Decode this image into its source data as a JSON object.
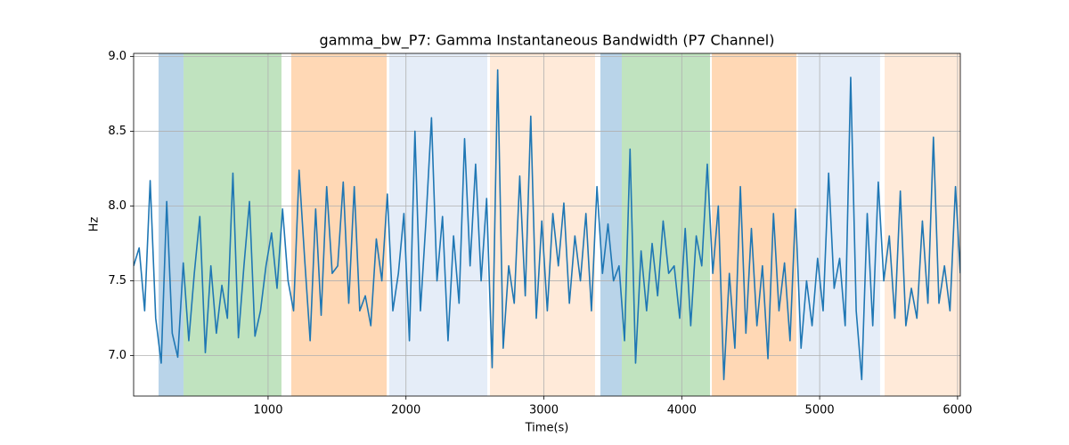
{
  "chart_data": {
    "type": "line",
    "title": "gamma_bw_P7: Gamma Instantaneous Bandwidth (P7 Channel)",
    "x_label": "Time(s)",
    "y_label": "Hz",
    "xlim": [
      25,
      6020
    ],
    "ylim": [
      6.73,
      9.02
    ],
    "xticks": [
      1000,
      2000,
      3000,
      4000,
      5000,
      6000
    ],
    "yticks": [
      {
        "value": 7,
        "label": "7.0"
      },
      7.5,
      {
        "value": 8,
        "label": "8.0"
      },
      8.5,
      {
        "value": 9,
        "label": "9.0"
      }
    ],
    "grid": true,
    "spans": [
      {
        "start": 206,
        "end": 387,
        "color": "#b9d4e9"
      },
      {
        "start": 387,
        "end": 1097,
        "color": "#c0e3bf"
      },
      {
        "start": 1168,
        "end": 1860,
        "color": "#ffd8b5"
      },
      {
        "start": 1879,
        "end": 2590,
        "color": "#e5edf8"
      },
      {
        "start": 2609,
        "end": 3371,
        "color": "#ffead9"
      },
      {
        "start": 3410,
        "end": 3565,
        "color": "#b9d4e9"
      },
      {
        "start": 3565,
        "end": 4205,
        "color": "#c0e3bf"
      },
      {
        "start": 4218,
        "end": 4831,
        "color": "#ffd8b5"
      },
      {
        "start": 4844,
        "end": 5438,
        "color": "#e5edf8"
      },
      {
        "start": 5471,
        "end": 6020,
        "color": "#ffead9"
      }
    ],
    "x": [
      25,
      65,
      105,
      145,
      185,
      225,
      265,
      305,
      345,
      385,
      425,
      465,
      505,
      545,
      585,
      625,
      665,
      705,
      745,
      785,
      825,
      865,
      905,
      945,
      985,
      1025,
      1065,
      1105,
      1145,
      1185,
      1225,
      1265,
      1305,
      1345,
      1385,
      1425,
      1465,
      1505,
      1545,
      1585,
      1625,
      1665,
      1705,
      1745,
      1785,
      1825,
      1865,
      1905,
      1945,
      1985,
      2025,
      2065,
      2105,
      2145,
      2185,
      2225,
      2265,
      2305,
      2345,
      2385,
      2425,
      2465,
      2505,
      2545,
      2585,
      2625,
      2665,
      2705,
      2745,
      2785,
      2825,
      2865,
      2905,
      2945,
      2985,
      3025,
      3065,
      3105,
      3145,
      3185,
      3225,
      3265,
      3305,
      3345,
      3385,
      3425,
      3465,
      3505,
      3545,
      3585,
      3625,
      3665,
      3705,
      3745,
      3785,
      3825,
      3865,
      3905,
      3945,
      3985,
      4025,
      4065,
      4105,
      4145,
      4185,
      4225,
      4265,
      4305,
      4345,
      4385,
      4425,
      4465,
      4505,
      4545,
      4585,
      4625,
      4665,
      4705,
      4745,
      4785,
      4825,
      4865,
      4905,
      4945,
      4985,
      5025,
      5065,
      5105,
      5145,
      5185,
      5225,
      5265,
      5305,
      5345,
      5385,
      5425,
      5465,
      5505,
      5545,
      5585,
      5625,
      5665,
      5705,
      5745,
      5785,
      5825,
      5865,
      5905,
      5945,
      5985,
      6020
    ],
    "series": [
      {
        "color": "#1f77b4",
        "values": [
          7.6,
          7.72,
          7.3,
          8.17,
          7.25,
          6.95,
          8.03,
          7.15,
          6.99,
          7.62,
          7.1,
          7.55,
          7.93,
          7.02,
          7.6,
          7.15,
          7.47,
          7.25,
          8.22,
          7.12,
          7.6,
          8.03,
          7.13,
          7.3,
          7.6,
          7.82,
          7.45,
          7.98,
          7.5,
          7.3,
          8.24,
          7.65,
          7.1,
          7.98,
          7.27,
          8.13,
          7.55,
          7.6,
          8.16,
          7.35,
          8.13,
          7.3,
          7.4,
          7.2,
          7.78,
          7.5,
          8.08,
          7.3,
          7.55,
          7.95,
          7.1,
          8.5,
          7.3,
          7.9,
          8.59,
          7.5,
          7.93,
          7.1,
          7.8,
          7.35,
          8.45,
          7.6,
          8.28,
          7.5,
          8.05,
          6.92,
          8.91,
          7.05,
          7.6,
          7.35,
          8.2,
          7.4,
          8.6,
          7.25,
          7.9,
          7.3,
          7.95,
          7.6,
          8.02,
          7.35,
          7.8,
          7.5,
          7.95,
          7.3,
          8.13,
          7.55,
          7.88,
          7.5,
          7.6,
          7.1,
          8.38,
          6.95,
          7.7,
          7.3,
          7.75,
          7.4,
          7.9,
          7.55,
          7.6,
          7.25,
          7.85,
          7.2,
          7.8,
          7.6,
          8.28,
          7.55,
          8.0,
          6.84,
          7.55,
          7.05,
          8.13,
          7.15,
          7.85,
          7.2,
          7.6,
          6.98,
          7.95,
          7.3,
          7.62,
          7.1,
          7.98,
          7.05,
          7.5,
          7.2,
          7.65,
          7.3,
          8.22,
          7.45,
          7.65,
          7.2,
          8.86,
          7.3,
          6.84,
          7.95,
          7.2,
          8.16,
          7.5,
          7.8,
          7.25,
          8.1,
          7.2,
          7.45,
          7.25,
          7.9,
          7.35,
          8.46,
          7.35,
          7.6,
          7.3,
          8.13,
          7.55
        ]
      }
    ]
  }
}
